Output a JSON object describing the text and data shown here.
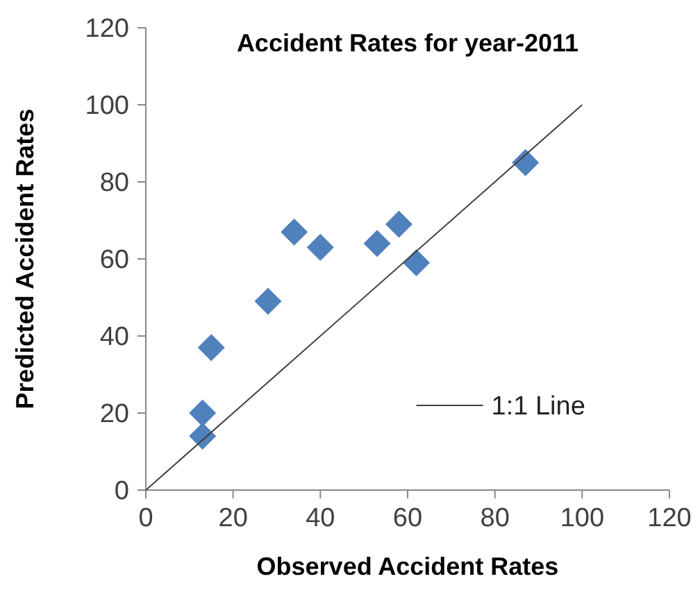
{
  "chart_data": {
    "type": "scatter",
    "title": "Accident Rates for year-2011",
    "xlabel": "Observed Accident Rates",
    "ylabel": "Predicted Accident Rates",
    "xlim": [
      0,
      120
    ],
    "ylim": [
      0,
      120
    ],
    "xticks": [
      0,
      20,
      40,
      60,
      80,
      100,
      120
    ],
    "yticks": [
      0,
      20,
      40,
      60,
      80,
      100,
      120
    ],
    "grid": false,
    "legend": "bottom right",
    "marker": "diamond",
    "series": [
      {
        "color": "#4f81bd",
        "x": [
          13,
          13,
          15,
          28,
          34,
          40,
          53,
          58,
          62,
          87
        ],
        "values": [
          20,
          14,
          37,
          49,
          67,
          63,
          64,
          69,
          59,
          85
        ]
      },
      {
        "type": "line",
        "name": "1:1 Line",
        "color": "#404040",
        "x": [
          0,
          100
        ],
        "values": [
          0,
          100
        ],
        "marker": "none",
        "line_style": "solid"
      }
    ]
  }
}
